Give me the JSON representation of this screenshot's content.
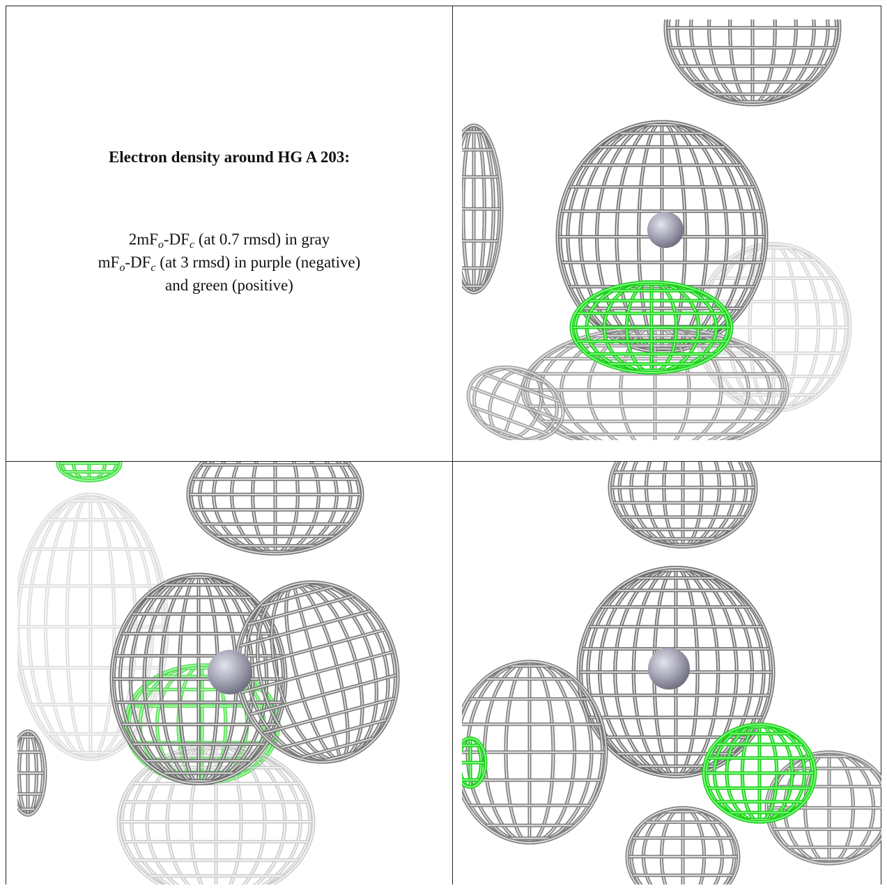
{
  "heading": "Electron density around HG A 203:",
  "lines": [
    {
      "parts": [
        "2mF",
        "o",
        "-DF",
        "c",
        " (at 0.7 rmsd) in gray"
      ]
    },
    {
      "parts": [
        "mF",
        "o",
        "-DF",
        "c",
        " (at 3 rmsd) in purple (negative)"
      ]
    },
    {
      "parts": [
        "and green (positive)"
      ]
    }
  ]
}
